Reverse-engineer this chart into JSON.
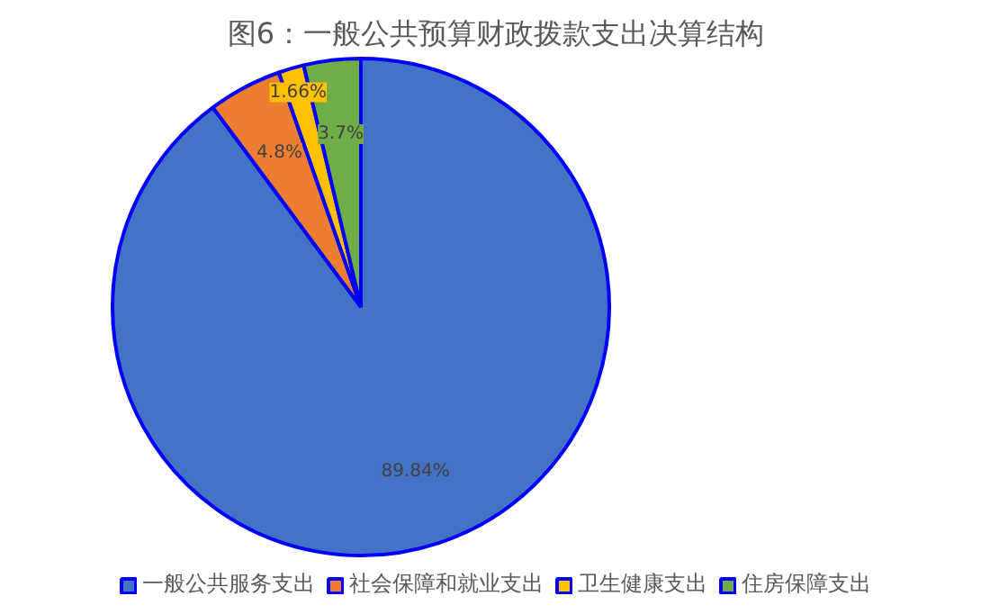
{
  "chart_data": {
    "type": "pie",
    "title": "图6：一般公共预算财政拨款支出决算结构",
    "categories": [
      "一般公共服务支出",
      "社会保障和就业支出",
      "卫生健康支出",
      "住房保障支出"
    ],
    "values": [
      89.84,
      4.8,
      1.66,
      3.7
    ],
    "colors": [
      "#4472c4",
      "#ed7d31",
      "#ffc000",
      "#70ad47"
    ],
    "value_labels": [
      "89.84%",
      "4.8%",
      "1.66%",
      "3.7%"
    ],
    "legend": "bottom"
  }
}
